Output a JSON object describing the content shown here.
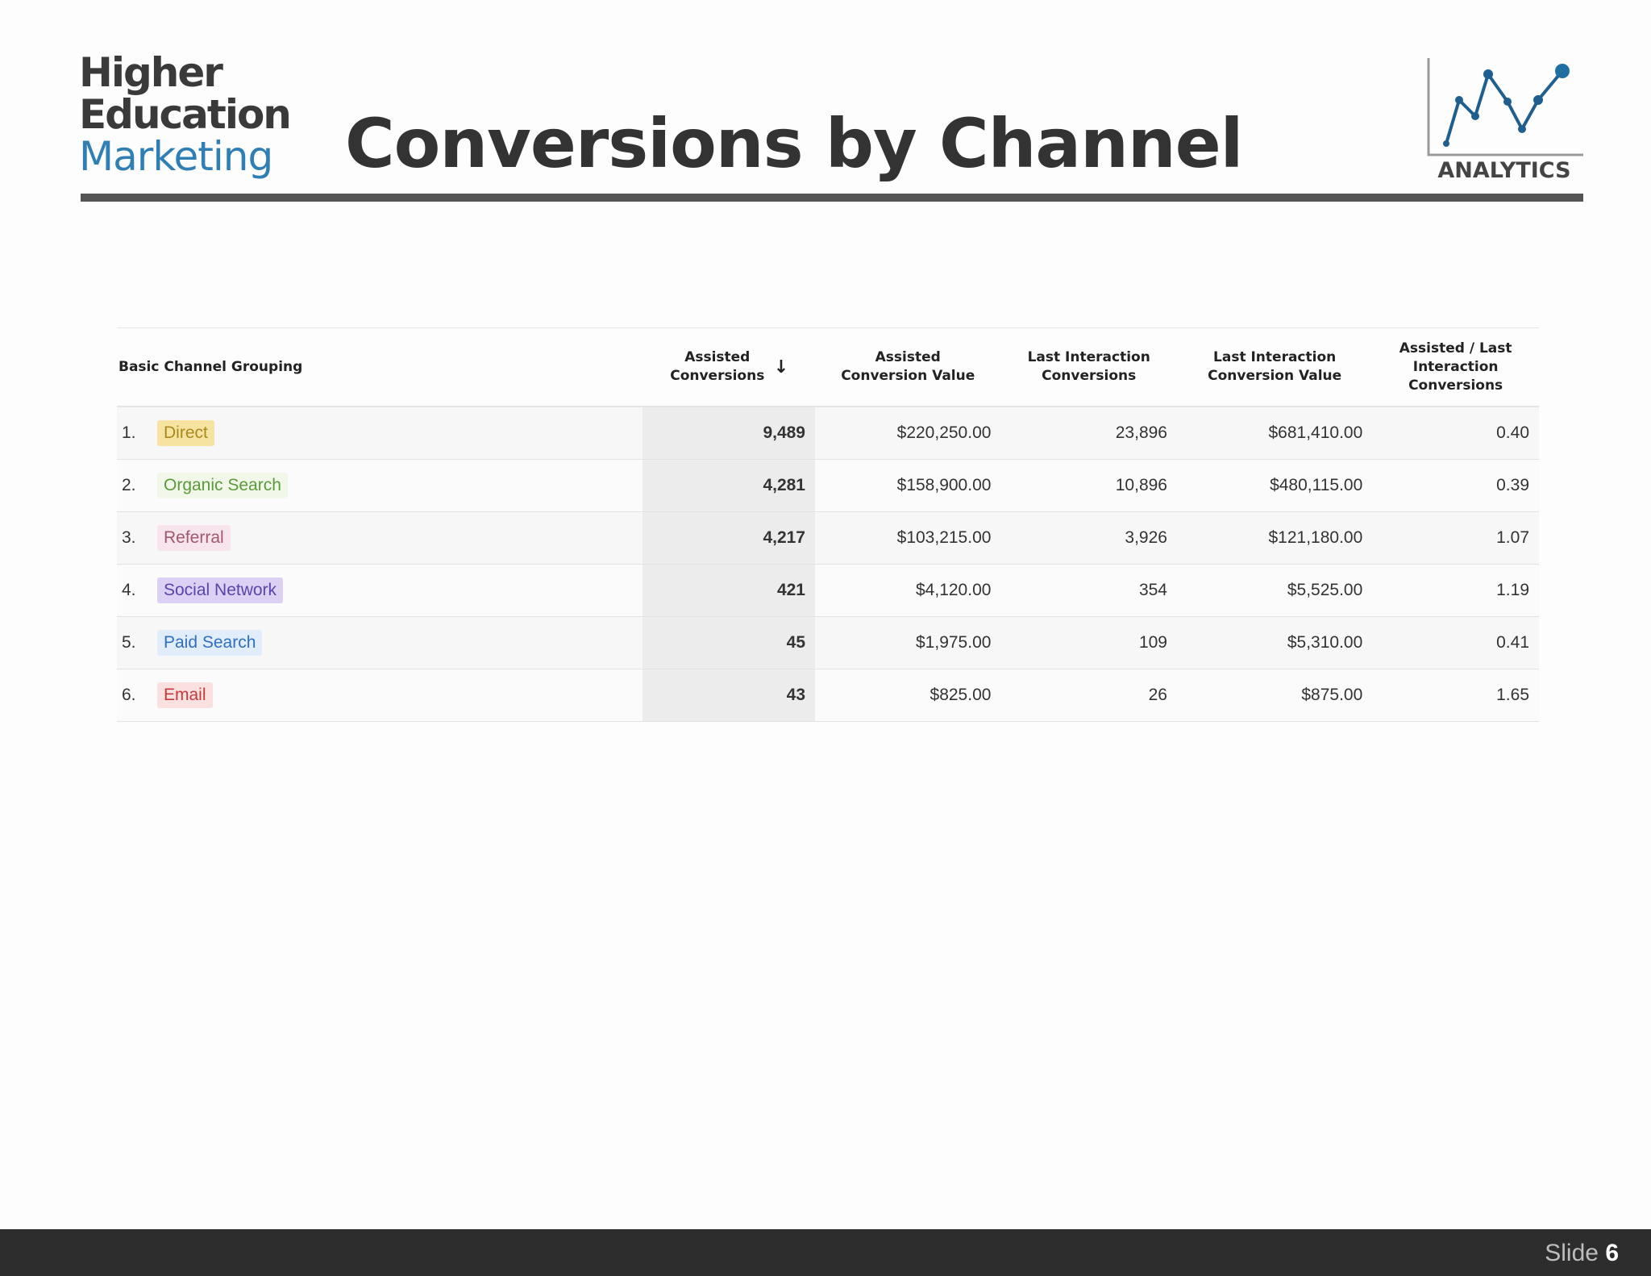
{
  "brand": {
    "line1": "Higher",
    "line2": "Education",
    "line3": "Marketing"
  },
  "title": "Conversions by Channel",
  "analytics_label": "ANALYTICS",
  "table": {
    "headers": [
      "Basic Channel Grouping",
      "Assisted Conversions",
      "Assisted Conversion Value",
      "Last Interaction Conversions",
      "Last Interaction Conversion Value",
      "Assisted / Last Interaction Conversions"
    ],
    "sort_icon": "arrow-down-icon",
    "rows": [
      {
        "rank": "1.",
        "channel": "Direct",
        "assisted": "9,489",
        "assisted_value": "$220,250.00",
        "last": "23,896",
        "last_value": "$681,410.00",
        "ratio": "0.40",
        "chip_bg": "#f6e3a1",
        "chip_fg": "#a98a1d"
      },
      {
        "rank": "2.",
        "channel": "Organic Search",
        "assisted": "4,281",
        "assisted_value": "$158,900.00",
        "last": "10,896",
        "last_value": "$480,115.00",
        "ratio": "0.39",
        "chip_bg": "#f1f8e9",
        "chip_fg": "#5b9a3a"
      },
      {
        "rank": "3.",
        "channel": "Referral",
        "assisted": "4,217",
        "assisted_value": "$103,215.00",
        "last": "3,926",
        "last_value": "$121,180.00",
        "ratio": "1.07",
        "chip_bg": "#f8e4ec",
        "chip_fg": "#a0586f"
      },
      {
        "rank": "4.",
        "channel": "Social Network",
        "assisted": "421",
        "assisted_value": "$4,120.00",
        "last": "354",
        "last_value": "$5,525.00",
        "ratio": "1.19",
        "chip_bg": "#ddd0f5",
        "chip_fg": "#5a45a8"
      },
      {
        "rank": "5.",
        "channel": "Paid Search",
        "assisted": "45",
        "assisted_value": "$1,975.00",
        "last": "109",
        "last_value": "$5,310.00",
        "ratio": "0.41",
        "chip_bg": "#e2edfb",
        "chip_fg": "#2f6fc0"
      },
      {
        "rank": "6.",
        "channel": "Email",
        "assisted": "43",
        "assisted_value": "$825.00",
        "last": "26",
        "last_value": "$875.00",
        "ratio": "1.65",
        "chip_bg": "#fbe0e0",
        "chip_fg": "#c43a3a"
      }
    ]
  },
  "footer": {
    "slide_label": "Slide",
    "slide_number": "6"
  },
  "colors": {
    "brand_blue": "#2f7fb5",
    "footer_bg": "#2d2d2d",
    "rule": "#555555"
  }
}
